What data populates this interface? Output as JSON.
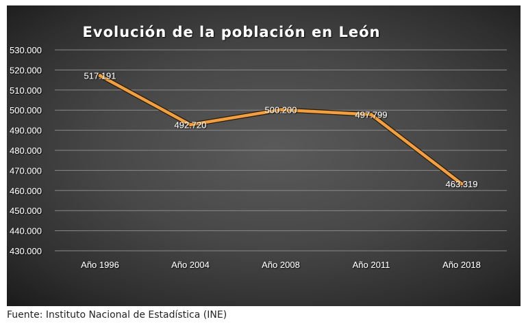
{
  "chart_data": {
    "type": "line",
    "title": "Evolución de la población en León",
    "xlabel": "",
    "ylabel": "",
    "categories": [
      "Año 1996",
      "Año 2004",
      "Año 2008",
      "Año 2011",
      "Año 2018"
    ],
    "series": [
      {
        "name": "Población",
        "values": [
          517191,
          492720,
          500200,
          497799,
          463319
        ],
        "data_labels": [
          "517.191",
          "492.720",
          "500.200",
          "497.799",
          "463.319"
        ],
        "color": "#f0a040"
      }
    ],
    "ylim": [
      430000,
      530000
    ],
    "yticks": [
      530000,
      520000,
      510000,
      500000,
      490000,
      480000,
      470000,
      460000,
      450000,
      440000,
      430000
    ],
    "ytick_labels": [
      "530.000",
      "520.000",
      "510.000",
      "500.000",
      "490.000",
      "480.000",
      "470.000",
      "460.000",
      "450.000",
      "440.000",
      "430.000"
    ],
    "grid": true,
    "legend": "none",
    "background": "#3c3c3c"
  },
  "source": "Fuente: Instituto Nacional de Estadística (INE)"
}
